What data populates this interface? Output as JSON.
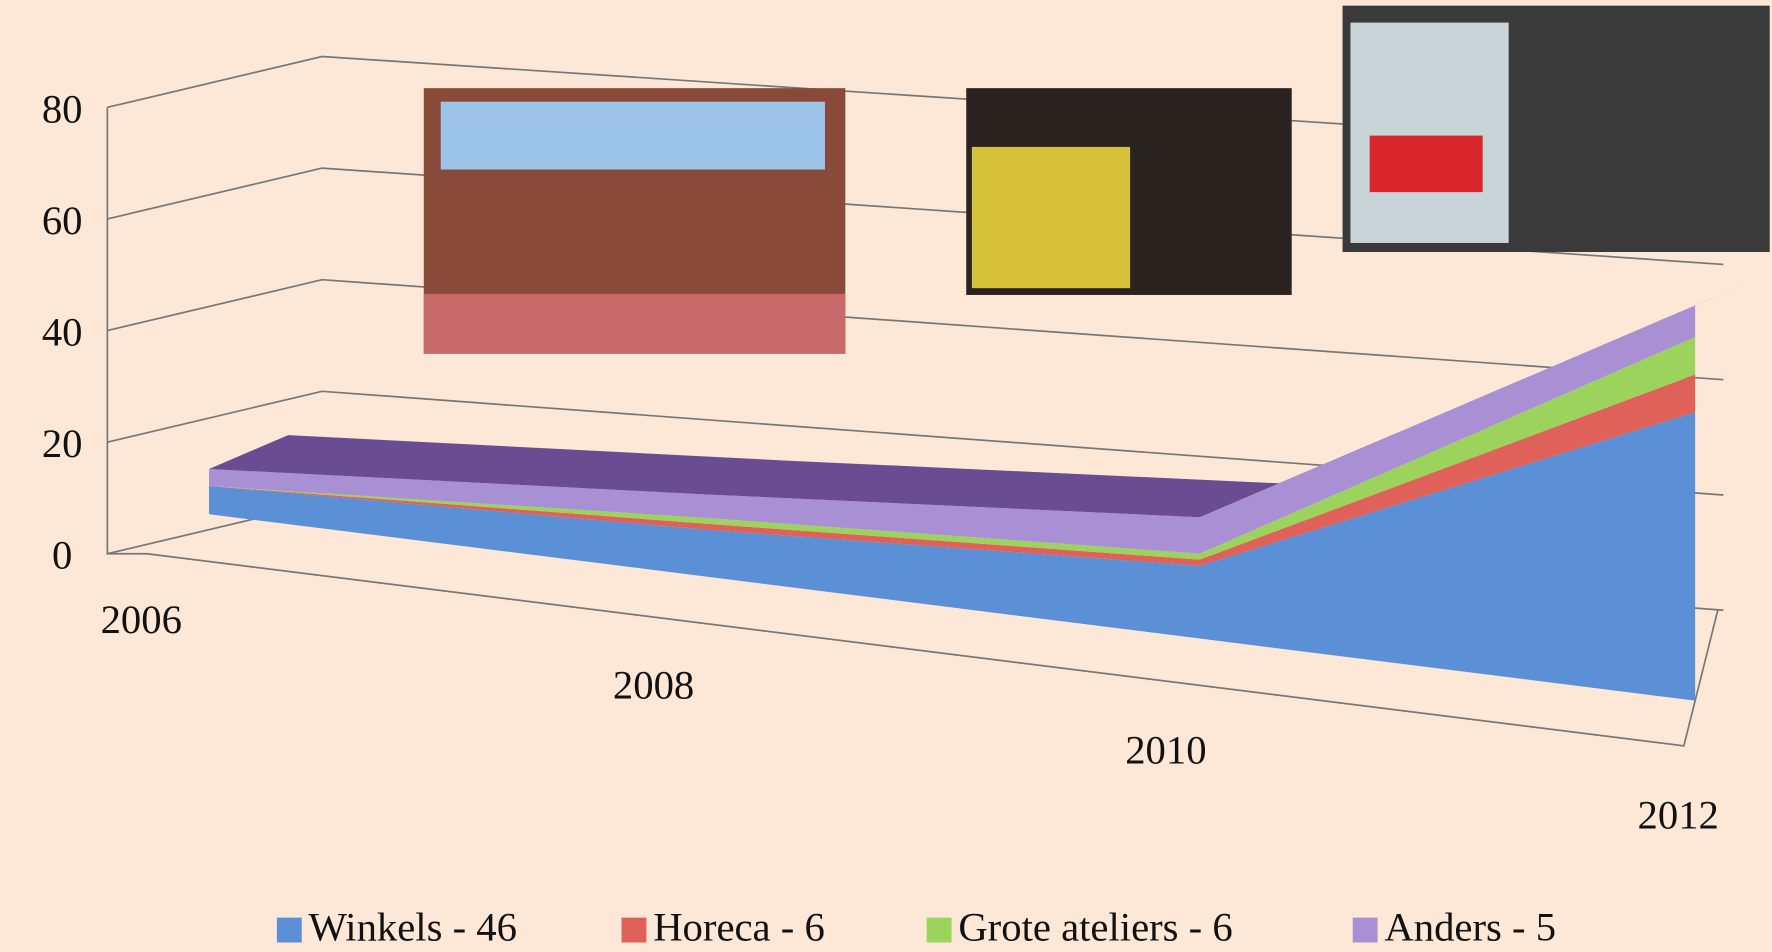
{
  "chart_data": {
    "type": "area3d",
    "categories": [
      "2006",
      "2008",
      "2010",
      "2012"
    ],
    "series": [
      {
        "name": "Winkels - 46",
        "color": "#5b8fd6",
        "values": [
          5,
          8,
          12,
          46
        ]
      },
      {
        "name": "Horeca - 6",
        "color": "#e0605a",
        "values": [
          0,
          1,
          1,
          6
        ]
      },
      {
        "name": "Grote ateliers - 6",
        "color": "#9cd35c",
        "values": [
          0,
          1,
          1,
          6
        ]
      },
      {
        "name": "Anders - 5",
        "color": "#a98fd4",
        "values": [
          3,
          4,
          6,
          5
        ]
      }
    ],
    "ylim": [
      0,
      80
    ],
    "yticks": [
      0,
      20,
      40,
      60,
      80
    ],
    "grid": true,
    "legend": "bottom"
  }
}
